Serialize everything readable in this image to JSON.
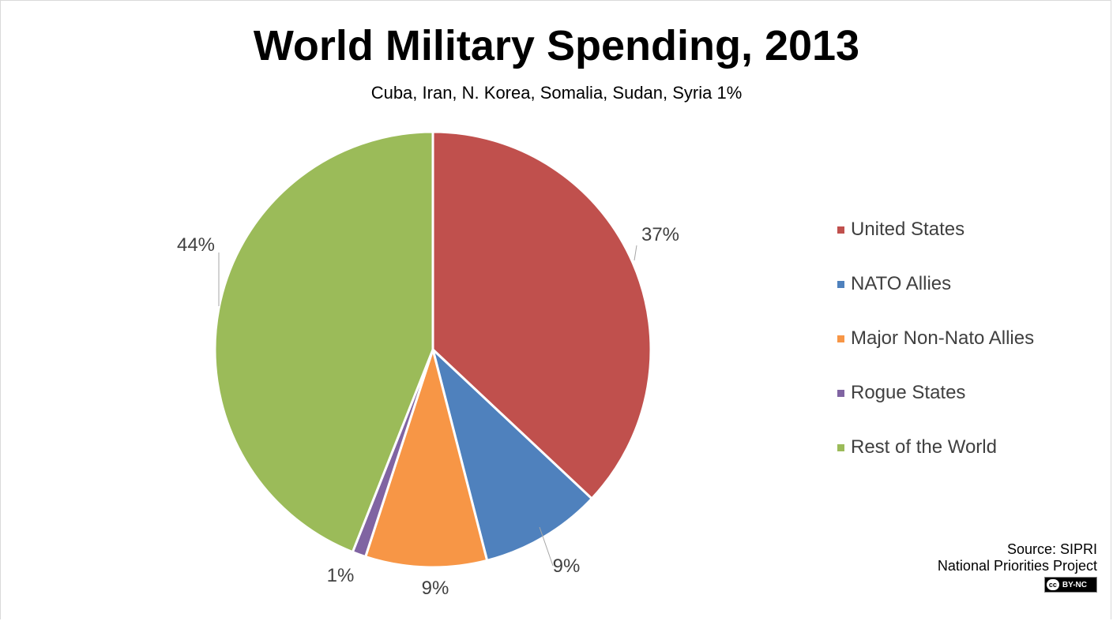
{
  "chart_data": {
    "type": "pie",
    "title": "World Military Spending, 2013",
    "subtitle": "Cuba, Iran, N. Korea, Somalia, Sudan, Syria 1%",
    "categories": [
      "United States",
      "NATO Allies",
      "Major Non-Nato Allies",
      "Rogue States",
      "Rest of the World"
    ],
    "values": [
      37,
      9,
      9,
      1,
      44
    ],
    "data_labels": [
      "37%",
      "9%",
      "9%",
      "1%",
      "44%"
    ],
    "colors": [
      "#c0504d",
      "#4f81bd",
      "#f79646",
      "#8064a2",
      "#9bbb59"
    ],
    "legend_position": "right"
  },
  "source": {
    "line1": "Source: SIPRI",
    "line2": "National Priorities Project",
    "license_symbol": "cc",
    "license_text": "BY-NC"
  }
}
